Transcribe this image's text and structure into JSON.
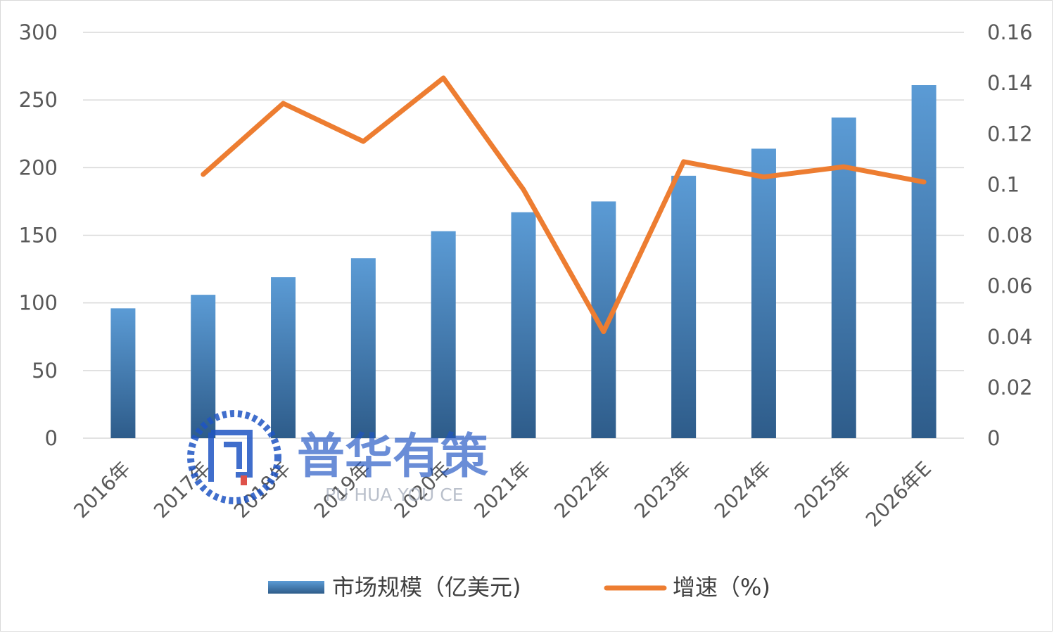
{
  "chart_data": {
    "type": "bar",
    "categories": [
      "2016年",
      "2017年",
      "2018年",
      "2019年",
      "2020年",
      "2021年",
      "2022年",
      "2023年",
      "2024年",
      "2025年",
      "2026年E"
    ],
    "series": [
      {
        "name": "市场规模（亿美元)",
        "type": "bar",
        "axis": "left",
        "values": [
          96,
          106,
          119,
          133,
          153,
          167,
          175,
          194,
          214,
          237,
          261
        ]
      },
      {
        "name": "增速（%)",
        "type": "line",
        "axis": "right",
        "values": [
          null,
          0.104,
          0.132,
          0.117,
          0.142,
          0.098,
          0.042,
          0.109,
          0.103,
          0.107,
          0.101
        ]
      }
    ],
    "y_left": {
      "min": 0,
      "max": 300,
      "ticks": [
        0,
        50,
        100,
        150,
        200,
        250,
        300
      ]
    },
    "y_right": {
      "min": 0,
      "max": 0.16,
      "ticks": [
        "0",
        "0.02",
        "0.04",
        "0.06",
        "0.08",
        "0.1",
        "0.12",
        "0.14",
        "0.16"
      ]
    },
    "grid": true,
    "legend": "bottom",
    "colors": {
      "bar_top": "#5b9bd5",
      "bar_bottom": "#2e5c8a",
      "line": "#ed7d31",
      "grid": "#d9d9d9"
    }
  },
  "watermark": {
    "text_cn": "普华有策",
    "text_en": "PU HUA YOU CE"
  }
}
